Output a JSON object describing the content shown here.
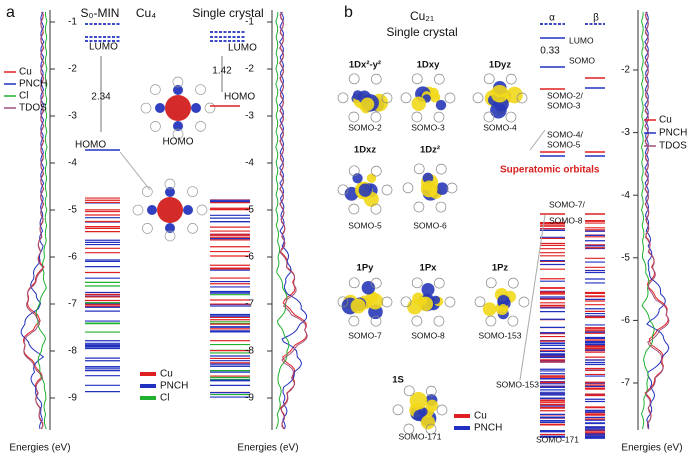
{
  "panel_a": {
    "label": "a",
    "title_left": "S₀-MIN",
    "title_center": "Cu₄",
    "title_right": "Single crystal",
    "dos_legend": [
      "Cu",
      "PNCH",
      "Cl",
      "TDOS"
    ],
    "yticks_left": [
      -1,
      -2,
      -3,
      -4,
      -5,
      -6,
      -7,
      -8,
      -9
    ],
    "yticks_right": [
      -1,
      -2,
      -3,
      -4,
      -5,
      -6,
      -7,
      -8,
      -9
    ],
    "lumo_left": "LUMO",
    "gap_left": "2.34",
    "homo_left": "HOMO",
    "homo_image": "HOMO",
    "lumo_right": "LUMO",
    "gap_right": "1.42",
    "homo_right": "HOMO",
    "level_legend": [
      "Cu",
      "PNCH",
      "Cl"
    ],
    "xlabel_left": "Energies (eV)",
    "xlabel_right": "Energies (eV)"
  },
  "panel_b": {
    "label": "b",
    "title": "Cu₂₁",
    "subtitle": "Single crystal",
    "orbitals": [
      {
        "name": "1Dx²-y²",
        "label": "SOMO-2"
      },
      {
        "name": "1Dxy",
        "label": "SOMO-3"
      },
      {
        "name": "1Dyz",
        "label": "SOMO-4"
      },
      {
        "name": "1Dxz",
        "label": "SOMO-5"
      },
      {
        "name": "1Dz²",
        "label": "SOMO-6"
      },
      {
        "name": "1Py",
        "label": "SOMO-7"
      },
      {
        "name": "1Px",
        "label": "SOMO-8"
      },
      {
        "name": "1Pz",
        "label": "SOMO-153"
      },
      {
        "name": "1S",
        "label": "SOMO-171"
      }
    ],
    "superatomic": "Superatomic orbitals",
    "alpha": "α",
    "beta": "β",
    "gap": "0.33",
    "lumo": "LUMO",
    "somo": "SOMO",
    "somo_2_3": [
      "SOMO-2/",
      "SOMO-3"
    ],
    "somo_4_5": [
      "SOMO-4/",
      "SOMO-5"
    ],
    "somo_7_8": [
      "SOMO-7/",
      "SOMO-8"
    ],
    "somo_153": "SOMO-153",
    "somo_171": "SOMO-171",
    "level_legend": [
      "Cu",
      "PNCH"
    ],
    "yticks": [
      -2,
      -3,
      -4,
      -5,
      -6,
      -7
    ],
    "dos_legend": [
      "Cu",
      "PNCH",
      "TDOS"
    ],
    "xlabel": "Energies (eV)"
  }
}
